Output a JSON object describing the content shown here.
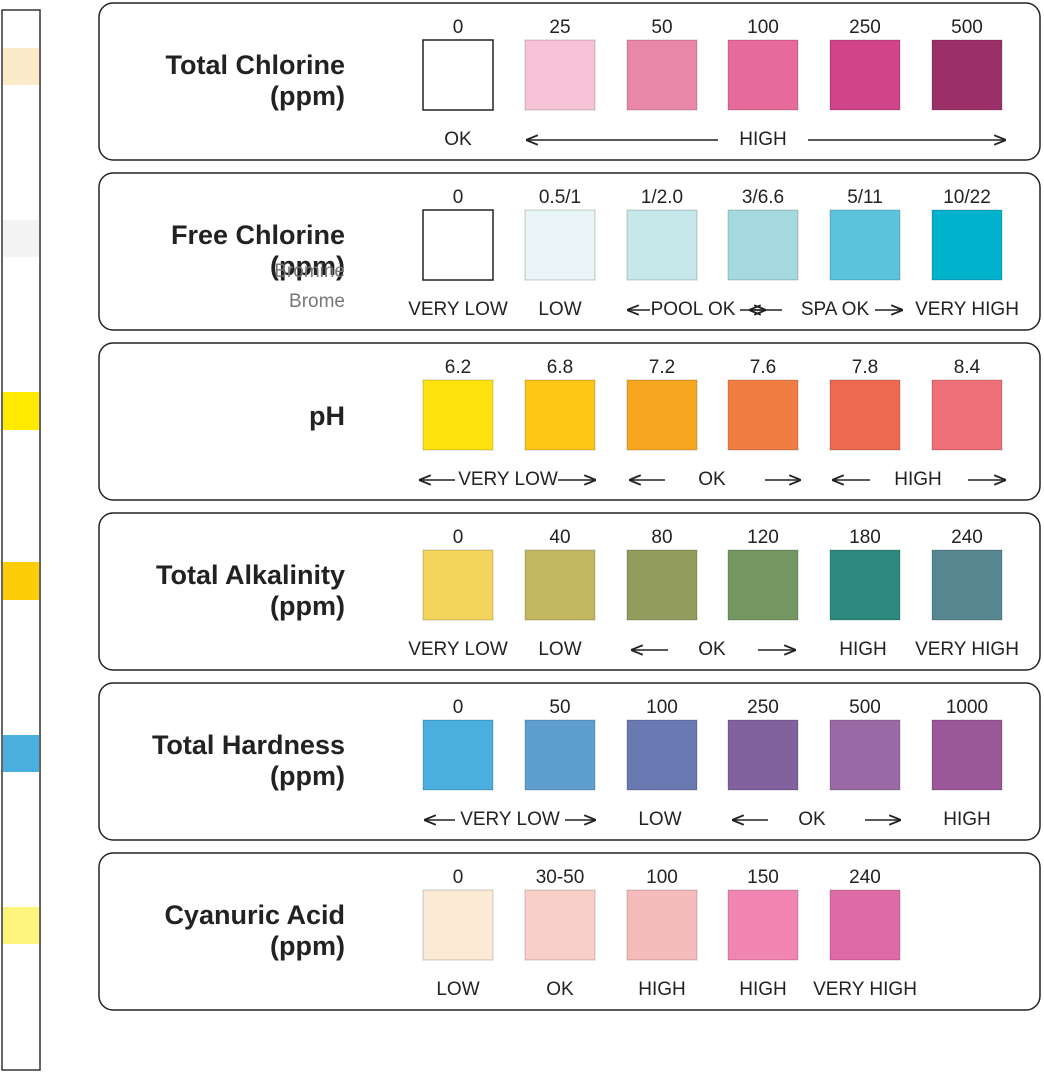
{
  "panels": [
    {
      "title": [
        "Total Chlorine",
        "(ppm)"
      ],
      "levels": [
        "0",
        "25",
        "50",
        "100",
        "250",
        "500"
      ],
      "colors": [
        "#ffffff",
        "#f6c3d6",
        "#e987a8",
        "#e66a9a",
        "#d2448a",
        "#9b3068"
      ],
      "status": [
        "OK",
        "HIGH"
      ]
    },
    {
      "title": [
        "Free Chlorine",
        "(ppm)"
      ],
      "subtitle": [
        "Bromine",
        "Brome"
      ],
      "levels": [
        "0",
        "0.5/1",
        "1/2.0",
        "3/6.6",
        "5/11",
        "10/22"
      ],
      "colors": [
        "#ffffff",
        "#e8f4f5",
        "#c7e8ea",
        "#a4d9df",
        "#5bc3dc",
        "#00b2cc"
      ],
      "status": [
        "VERY LOW",
        "LOW",
        "POOL OK",
        "SPA OK",
        "VERY HIGH"
      ]
    },
    {
      "title": [
        "pH"
      ],
      "levels": [
        "6.2",
        "6.8",
        "7.2",
        "7.6",
        "7.8",
        "8.4"
      ],
      "colors": [
        "#ffe20e",
        "#fdc515",
        "#f6a71f",
        "#f27d43",
        "#ef6950",
        "#ee6f77"
      ],
      "status": [
        "VERY LOW",
        "OK",
        "HIGH"
      ]
    },
    {
      "title": [
        "Total Alkalinity",
        "(ppm)"
      ],
      "levels": [
        "0",
        "40",
        "80",
        "120",
        "180",
        "240"
      ],
      "colors": [
        "#f2d55a",
        "#c3b660",
        "#929c5c",
        "#749660",
        "#2e8a7e",
        "#568690"
      ],
      "status": [
        "VERY LOW",
        "LOW",
        "OK",
        "HIGH",
        "VERY HIGH"
      ]
    },
    {
      "title": [
        "Total Hardness",
        "(ppm)"
      ],
      "levels": [
        "0",
        "50",
        "100",
        "250",
        "500",
        "1000"
      ],
      "colors": [
        "#4aaede",
        "#5f9fcf",
        "#6b79b2",
        "#82619f",
        "#9b6aa6",
        "#9a5899"
      ],
      "status": [
        "VERY LOW",
        "LOW",
        "OK",
        "HIGH"
      ]
    },
    {
      "title": [
        "Cyanuric Acid",
        "(ppm)"
      ],
      "levels": [
        "0",
        "30-50",
        "100",
        "150",
        "240"
      ],
      "colors": [
        "#fbebd5",
        "#f9d0c8",
        "#f5bcbc",
        "#f085b2",
        "#de6aa6"
      ],
      "status": [
        "LOW",
        "OK",
        "HIGH",
        "HIGH",
        "VERY HIGH"
      ]
    }
  ]
}
